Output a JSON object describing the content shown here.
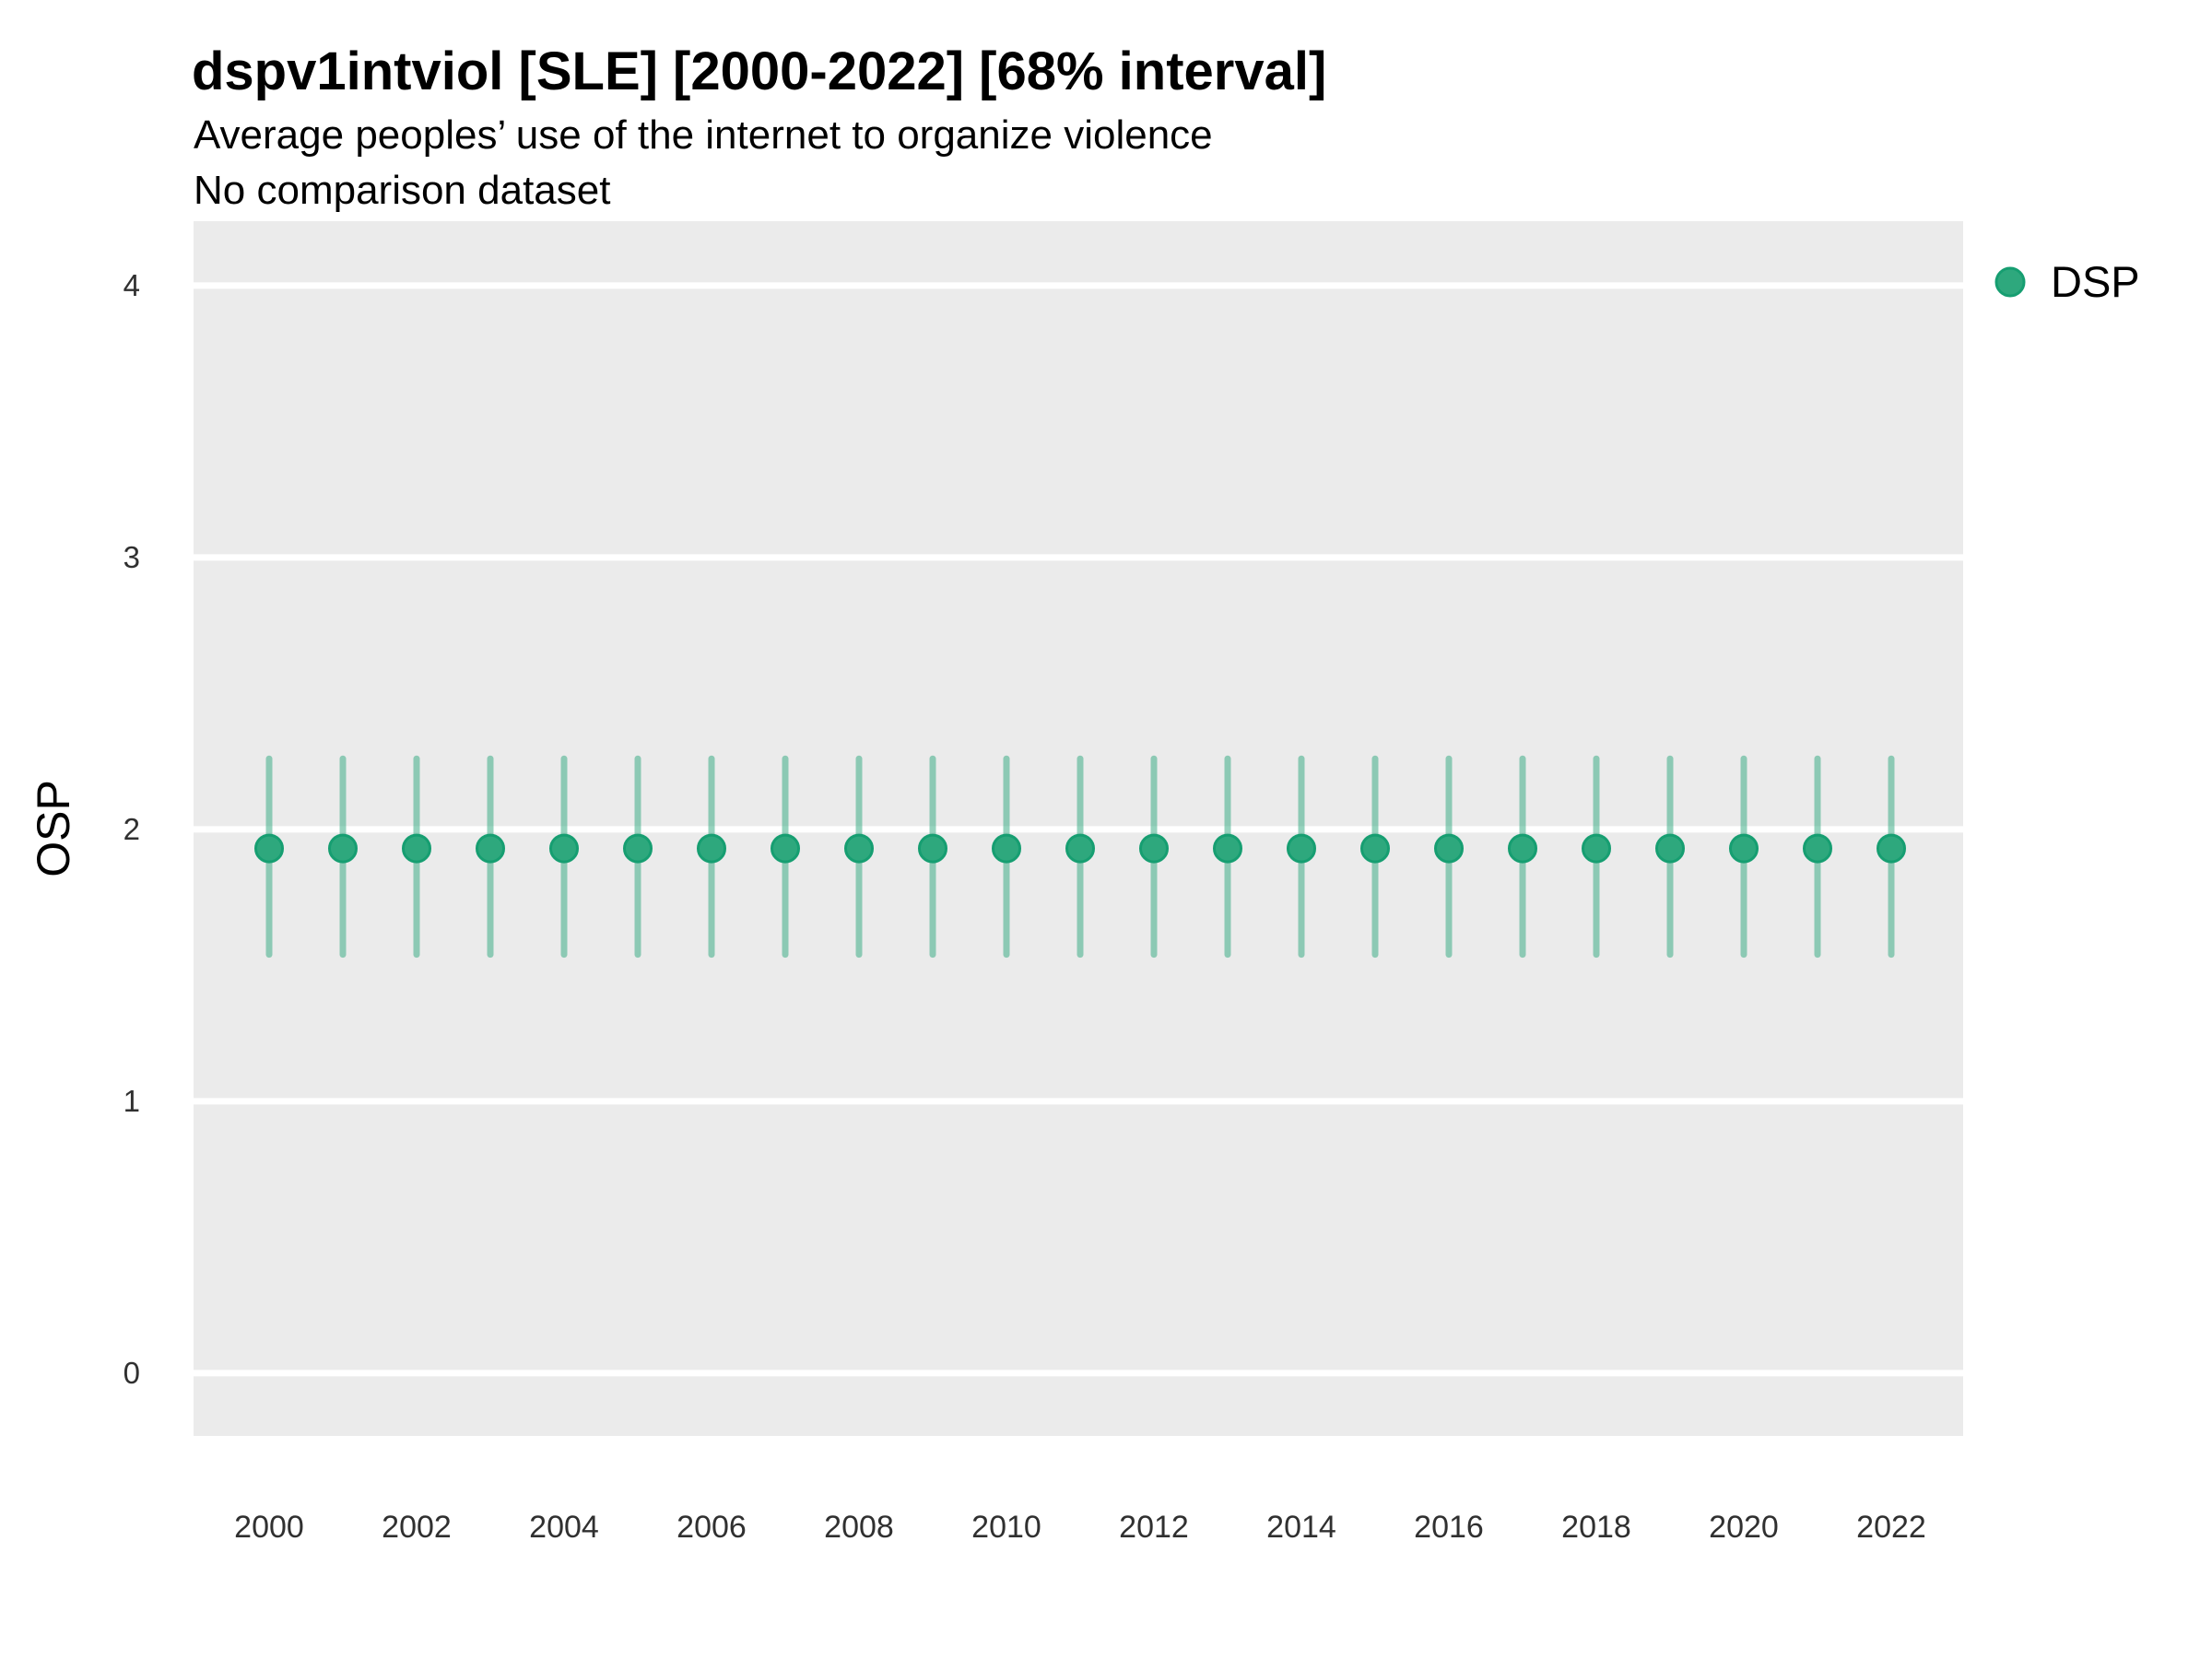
{
  "header": {
    "title": "dspv1intviol [SLE] [2000-2022] [68% interval]",
    "subtitle1": "Average peoples’ use of the internet to organize violence",
    "subtitle2": "No comparison dataset"
  },
  "legend": {
    "label": "DSP",
    "marker": "circle-icon",
    "position": "right-top"
  },
  "colors": {
    "point_fill": "#2ea87d",
    "point_stroke": "#169e71",
    "interval_bar": "rgba(46, 168, 125, 0.5)",
    "panel_bg": "#ebebeb",
    "gridline": "#ffffff",
    "title_text": "#000000",
    "tick_text": "#303030"
  },
  "chart_data": {
    "type": "scatter",
    "subtype": "point-estimates-with-error-bars",
    "title": "dspv1intviol [SLE] [2000-2022] [68% interval]",
    "subtitle": [
      "Average peoples’ use of the internet to organize violence",
      "No comparison dataset"
    ],
    "xlabel": "",
    "ylabel": "OSP",
    "ylim": [
      0,
      4
    ],
    "yticks": [
      0,
      1,
      2,
      3,
      4
    ],
    "xticks": [
      2000,
      2002,
      2004,
      2006,
      2008,
      2010,
      2012,
      2014,
      2016,
      2018,
      2020,
      2022
    ],
    "grid": "horizontal-major-only-white",
    "legend_position": "right-top",
    "interval_level": "68%",
    "series": [
      {
        "name": "DSP",
        "points": [
          {
            "year": 2000,
            "estimate": 1.93,
            "lower": 1.54,
            "upper": 2.26
          },
          {
            "year": 2001,
            "estimate": 1.93,
            "lower": 1.54,
            "upper": 2.26
          },
          {
            "year": 2002,
            "estimate": 1.93,
            "lower": 1.54,
            "upper": 2.26
          },
          {
            "year": 2003,
            "estimate": 1.93,
            "lower": 1.54,
            "upper": 2.26
          },
          {
            "year": 2004,
            "estimate": 1.93,
            "lower": 1.54,
            "upper": 2.26
          },
          {
            "year": 2005,
            "estimate": 1.93,
            "lower": 1.54,
            "upper": 2.26
          },
          {
            "year": 2006,
            "estimate": 1.93,
            "lower": 1.54,
            "upper": 2.26
          },
          {
            "year": 2007,
            "estimate": 1.93,
            "lower": 1.54,
            "upper": 2.26
          },
          {
            "year": 2008,
            "estimate": 1.93,
            "lower": 1.54,
            "upper": 2.26
          },
          {
            "year": 2009,
            "estimate": 1.93,
            "lower": 1.54,
            "upper": 2.26
          },
          {
            "year": 2010,
            "estimate": 1.93,
            "lower": 1.54,
            "upper": 2.26
          },
          {
            "year": 2011,
            "estimate": 1.93,
            "lower": 1.54,
            "upper": 2.26
          },
          {
            "year": 2012,
            "estimate": 1.93,
            "lower": 1.54,
            "upper": 2.26
          },
          {
            "year": 2013,
            "estimate": 1.93,
            "lower": 1.54,
            "upper": 2.26
          },
          {
            "year": 2014,
            "estimate": 1.93,
            "lower": 1.54,
            "upper": 2.26
          },
          {
            "year": 2015,
            "estimate": 1.93,
            "lower": 1.54,
            "upper": 2.26
          },
          {
            "year": 2016,
            "estimate": 1.93,
            "lower": 1.54,
            "upper": 2.26
          },
          {
            "year": 2017,
            "estimate": 1.93,
            "lower": 1.54,
            "upper": 2.26
          },
          {
            "year": 2018,
            "estimate": 1.93,
            "lower": 1.54,
            "upper": 2.26
          },
          {
            "year": 2019,
            "estimate": 1.93,
            "lower": 1.54,
            "upper": 2.26
          },
          {
            "year": 2020,
            "estimate": 1.93,
            "lower": 1.54,
            "upper": 2.26
          },
          {
            "year": 2021,
            "estimate": 1.93,
            "lower": 1.54,
            "upper": 2.26
          },
          {
            "year": 2022,
            "estimate": 1.93,
            "lower": 1.54,
            "upper": 2.26
          }
        ]
      }
    ]
  }
}
